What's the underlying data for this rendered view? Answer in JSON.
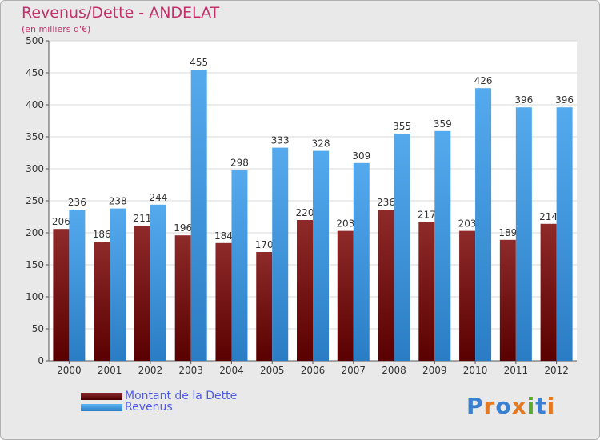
{
  "chart_data": {
    "type": "bar",
    "title": "Revenus/Dette - ANDELAT",
    "subtitle": "(en milliers d'€)",
    "categories": [
      "2000",
      "2001",
      "2002",
      "2003",
      "2004",
      "2005",
      "2006",
      "2007",
      "2008",
      "2009",
      "2010",
      "2011",
      "2012"
    ],
    "series": [
      {
        "name": "Montant de la Dette",
        "color": "#8b1a1a",
        "values": [
          206,
          186,
          211,
          196,
          184,
          170,
          220,
          203,
          236,
          217,
          203,
          189,
          214
        ]
      },
      {
        "name": "Revenus",
        "color": "#3a95dc",
        "values": [
          236,
          238,
          244,
          455,
          298,
          333,
          328,
          309,
          355,
          359,
          426,
          396,
          396
        ]
      }
    ],
    "ylim": [
      0,
      500
    ],
    "yticks": [
      0,
      50,
      100,
      150,
      200,
      250,
      300,
      350,
      400,
      450,
      500
    ],
    "grid": true,
    "legend": "bottom-left",
    "xlabel": "",
    "ylabel": ""
  },
  "logo": {
    "letters": [
      {
        "ch": "P",
        "color": "#3a7fd0"
      },
      {
        "ch": "r",
        "color": "#e8781e"
      },
      {
        "ch": "o",
        "color": "#3a7fd0"
      },
      {
        "ch": "x",
        "color": "#e8781e"
      },
      {
        "ch": "i",
        "color": "#5aa832"
      },
      {
        "ch": "t",
        "color": "#3a7fd0"
      },
      {
        "ch": "i",
        "color": "#e8781e"
      }
    ]
  }
}
